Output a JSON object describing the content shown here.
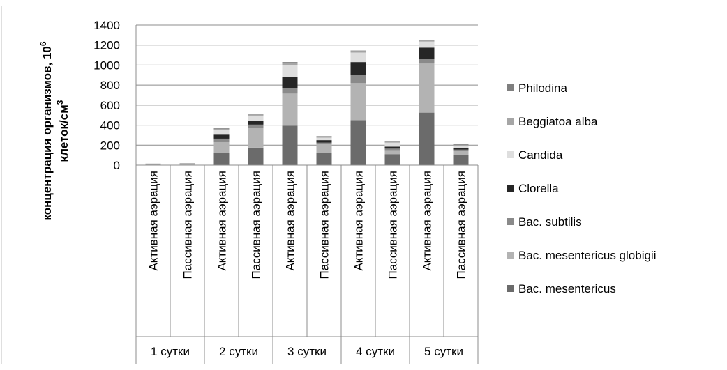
{
  "chart_data": {
    "type": "bar",
    "stacked": true,
    "title": "",
    "ylabel_line1": "концентрация организмов, 10",
    "ylabel_sup": "6",
    "ylabel_line2": "клеток/см",
    "ylabel_sup2": "3",
    "ylim": [
      0,
      1400
    ],
    "yticks": [
      0,
      200,
      400,
      600,
      800,
      1000,
      1200,
      1400
    ],
    "grid": true,
    "legend_position": "right",
    "categories": [
      "Активная аэрация",
      "Пассивная аэрация",
      "Активная аэрация",
      "Пассивная аэрация",
      "Активная аэрация",
      "Пассивная аэрация",
      "Активная аэрация",
      "Пассивная аэрация",
      "Активная аэрация",
      "Пассивная аэрация"
    ],
    "groups": [
      "1 сутки",
      "2 сутки",
      "3 сутки",
      "4 сутки",
      "5 сутки"
    ],
    "series": [
      {
        "name": "Bac. mesentericus",
        "color": "#6b6b6b",
        "values": [
          3,
          4,
          125,
          175,
          395,
          120,
          450,
          110,
          525,
          100
        ]
      },
      {
        "name": "Bac. mesentericus globigii",
        "color": "#b3b3b3",
        "values": [
          5,
          6,
          105,
          195,
          320,
          90,
          370,
          40,
          490,
          40
        ]
      },
      {
        "name": "Bac. subtilis",
        "color": "#8a8a8a",
        "values": [
          2,
          3,
          35,
          35,
          55,
          15,
          85,
          15,
          50,
          15
        ]
      },
      {
        "name": "Clorella",
        "color": "#262626",
        "values": [
          0,
          0,
          40,
          35,
          110,
          25,
          125,
          20,
          110,
          20
        ]
      },
      {
        "name": "Candida",
        "color": "#dedede",
        "values": [
          2,
          2,
          45,
          55,
          120,
          25,
          95,
          40,
          60,
          20
        ]
      },
      {
        "name": "Beggiatoa alba",
        "color": "#a6a6a6",
        "values": [
          2,
          2,
          15,
          15,
          20,
          10,
          15,
          10,
          10,
          10
        ]
      },
      {
        "name": "Philodina",
        "color": "#7f7f7f",
        "values": [
          1,
          1,
          5,
          5,
          10,
          5,
          5,
          5,
          5,
          5
        ]
      }
    ],
    "legend_order": [
      "Philodina",
      "Beggiatoa alba",
      "Candida",
      "Clorella",
      "Bac. subtilis",
      "Bac. mesentericus globigii",
      "Bac. mesentericus"
    ]
  }
}
